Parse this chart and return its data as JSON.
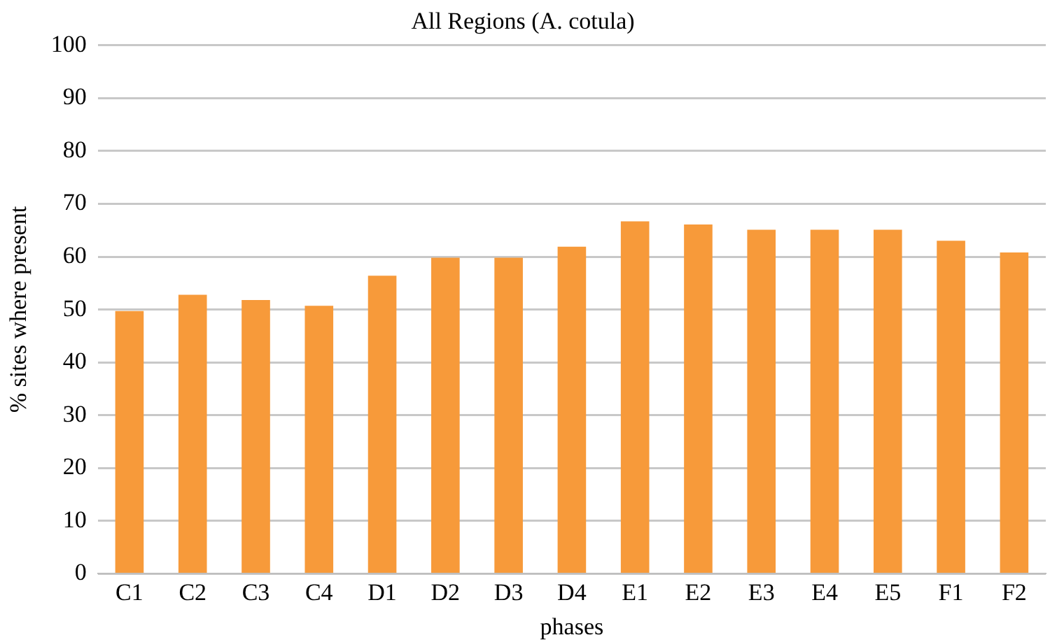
{
  "chart_data": {
    "type": "bar",
    "title": "All Regions (A. cotula)",
    "xlabel": "phases",
    "ylabel": "% sites where present",
    "categories": [
      "C1",
      "C2",
      "C3",
      "C4",
      "D1",
      "D2",
      "D3",
      "D4",
      "E1",
      "E2",
      "E3",
      "E4",
      "E5",
      "F1",
      "F2"
    ],
    "values": [
      49.7,
      52.8,
      51.8,
      50.7,
      56.4,
      59.8,
      59.8,
      61.9,
      66.7,
      66.1,
      65.1,
      65.1,
      65.1,
      63.0,
      60.8
    ],
    "color": "#f79a3a",
    "ylim": [
      0,
      100
    ],
    "yticks": [
      0,
      10,
      20,
      30,
      40,
      50,
      60,
      70,
      80,
      90,
      100
    ],
    "grid": "y"
  }
}
